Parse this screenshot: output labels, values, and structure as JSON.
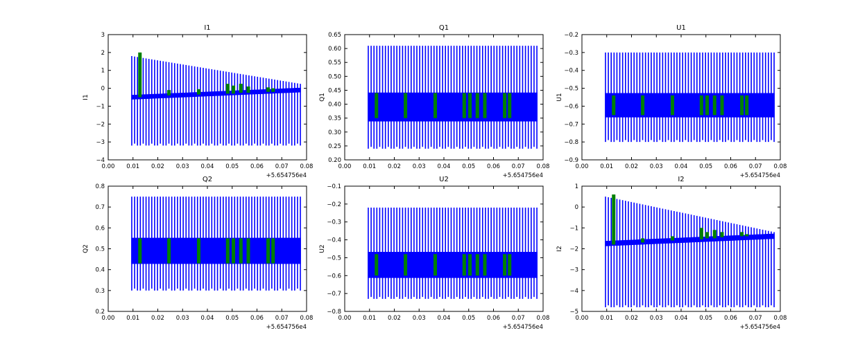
{
  "colors": {
    "primary": "#0000ff",
    "secondary": "#008000",
    "frame": "#000000",
    "background": "#ffffff"
  },
  "chart_data": [
    {
      "type": "line",
      "title": "I1",
      "ylabel": "I1",
      "xlabel": "",
      "xlim": [
        0.0,
        0.08
      ],
      "ylim": [
        -4,
        3
      ],
      "offset_label": "+5.654756e4",
      "x_ticks": [
        "0.00",
        "0.01",
        "0.02",
        "0.03",
        "0.04",
        "0.05",
        "0.06",
        "0.07",
        "0.08"
      ],
      "y_ticks": [
        "−4",
        "−3",
        "−2",
        "−1",
        "0",
        "1",
        "2",
        "3"
      ],
      "series": [
        {
          "name": "band",
          "color": "#0000ff",
          "x_range": [
            0.0095,
            0.0775
          ],
          "band_start": [
            -0.6,
            -0.4
          ],
          "band_end": [
            -0.2,
            0.0
          ]
        },
        {
          "name": "spikes",
          "color": "#0000ff",
          "x_range": [
            0.0095,
            0.0775
          ],
          "n_spikes": 60,
          "spike_top_start": 1.8,
          "spike_top_end": 0.25,
          "spike_bottom": -3.2
        },
        {
          "name": "series 2",
          "color": "#008000",
          "x": [
            0.0128,
            0.0245,
            0.0365,
            0.0482,
            0.0505,
            0.0535,
            0.0565,
            0.0645,
            0.0665
          ],
          "y_low": [
            -0.5,
            -0.4,
            -0.35,
            -0.3,
            -0.3,
            -0.25,
            -0.25,
            -0.2,
            -0.2
          ],
          "y_high": [
            2.0,
            -0.1,
            -0.05,
            0.25,
            0.15,
            0.25,
            0.1,
            0.05,
            0.0
          ]
        }
      ]
    },
    {
      "type": "line",
      "title": "Q1",
      "ylabel": "Q1",
      "xlabel": "",
      "xlim": [
        0.0,
        0.08
      ],
      "ylim": [
        0.2,
        0.65
      ],
      "offset_label": "+5.654756e4",
      "x_ticks": [
        "0.00",
        "0.01",
        "0.02",
        "0.03",
        "0.04",
        "0.05",
        "0.06",
        "0.07",
        "0.08"
      ],
      "y_ticks": [
        "0.20",
        "0.25",
        "0.30",
        "0.35",
        "0.40",
        "0.45",
        "0.50",
        "0.55",
        "0.60",
        "0.65"
      ],
      "series": [
        {
          "name": "band",
          "color": "#0000ff",
          "x_range": [
            0.0095,
            0.0775
          ],
          "band_start": [
            0.34,
            0.44
          ],
          "band_end": [
            0.34,
            0.44
          ]
        },
        {
          "name": "spikes",
          "color": "#0000ff",
          "x_range": [
            0.0095,
            0.0775
          ],
          "n_spikes": 60,
          "spike_top_start": 0.61,
          "spike_top_end": 0.61,
          "spike_bottom": 0.24
        },
        {
          "name": "series 2",
          "color": "#008000",
          "x": [
            0.0128,
            0.0245,
            0.0365,
            0.0482,
            0.0505,
            0.0535,
            0.0565,
            0.0645,
            0.0665
          ],
          "y_low": [
            0.35,
            0.35,
            0.35,
            0.35,
            0.35,
            0.35,
            0.35,
            0.35,
            0.35
          ],
          "y_high": [
            0.44,
            0.44,
            0.44,
            0.44,
            0.44,
            0.44,
            0.44,
            0.44,
            0.44
          ]
        }
      ]
    },
    {
      "type": "line",
      "title": "U1",
      "ylabel": "U1",
      "xlabel": "",
      "xlim": [
        0.0,
        0.08
      ],
      "ylim": [
        -0.9,
        -0.2
      ],
      "offset_label": "+5.654756e4",
      "x_ticks": [
        "0.00",
        "0.01",
        "0.02",
        "0.03",
        "0.04",
        "0.05",
        "0.06",
        "0.07",
        "0.08"
      ],
      "y_ticks": [
        "−0.9",
        "−0.8",
        "−0.7",
        "−0.6",
        "−0.5",
        "−0.4",
        "−0.3",
        "−0.2"
      ],
      "series": [
        {
          "name": "band",
          "color": "#0000ff",
          "x_range": [
            0.0095,
            0.0775
          ],
          "band_start": [
            -0.66,
            -0.53
          ],
          "band_end": [
            -0.66,
            -0.53
          ]
        },
        {
          "name": "spikes",
          "color": "#0000ff",
          "x_range": [
            0.0095,
            0.0775
          ],
          "n_spikes": 60,
          "spike_top_start": -0.3,
          "spike_top_end": -0.3,
          "spike_bottom": -0.8
        },
        {
          "name": "series 2",
          "color": "#008000",
          "x": [
            0.0128,
            0.0245,
            0.0365,
            0.0482,
            0.0505,
            0.0535,
            0.0565,
            0.0645,
            0.0665
          ],
          "y_low": [
            -0.65,
            -0.65,
            -0.65,
            -0.65,
            -0.65,
            -0.65,
            -0.65,
            -0.65,
            -0.65
          ],
          "y_high": [
            -0.54,
            -0.54,
            -0.54,
            -0.54,
            -0.54,
            -0.54,
            -0.54,
            -0.54,
            -0.54
          ]
        }
      ]
    },
    {
      "type": "line",
      "title": "Q2",
      "ylabel": "Q2",
      "xlabel": "",
      "xlim": [
        0.0,
        0.08
      ],
      "ylim": [
        0.2,
        0.8
      ],
      "offset_label": "+5.654756e4",
      "x_ticks": [
        "0.00",
        "0.01",
        "0.02",
        "0.03",
        "0.04",
        "0.05",
        "0.06",
        "0.07",
        "0.08"
      ],
      "y_ticks": [
        "0.2",
        "0.3",
        "0.4",
        "0.5",
        "0.6",
        "0.7",
        "0.8"
      ],
      "series": [
        {
          "name": "band",
          "color": "#0000ff",
          "x_range": [
            0.0095,
            0.0775
          ],
          "band_start": [
            0.43,
            0.55
          ],
          "band_end": [
            0.43,
            0.55
          ]
        },
        {
          "name": "spikes",
          "color": "#0000ff",
          "x_range": [
            0.0095,
            0.0775
          ],
          "n_spikes": 60,
          "spike_top_start": 0.75,
          "spike_top_end": 0.75,
          "spike_bottom": 0.3
        },
        {
          "name": "series 2",
          "color": "#008000",
          "x": [
            0.0128,
            0.0245,
            0.0365,
            0.0482,
            0.0505,
            0.0535,
            0.0565,
            0.0645,
            0.0665
          ],
          "y_low": [
            0.43,
            0.43,
            0.43,
            0.43,
            0.43,
            0.43,
            0.43,
            0.43,
            0.43
          ],
          "y_high": [
            0.55,
            0.55,
            0.55,
            0.55,
            0.55,
            0.55,
            0.55,
            0.55,
            0.55
          ]
        }
      ]
    },
    {
      "type": "line",
      "title": "U2",
      "ylabel": "U2",
      "xlabel": "",
      "xlim": [
        0.0,
        0.08
      ],
      "ylim": [
        -0.8,
        -0.1
      ],
      "offset_label": "+5.654756e4",
      "x_ticks": [
        "0.00",
        "0.01",
        "0.02",
        "0.03",
        "0.04",
        "0.05",
        "0.06",
        "0.07",
        "0.08"
      ],
      "y_ticks": [
        "−0.8",
        "−0.7",
        "−0.6",
        "−0.5",
        "−0.4",
        "−0.3",
        "−0.2",
        "−0.1"
      ],
      "series": [
        {
          "name": "band",
          "color": "#0000ff",
          "x_range": [
            0.0095,
            0.0775
          ],
          "band_start": [
            -0.61,
            -0.47
          ],
          "band_end": [
            -0.61,
            -0.47
          ]
        },
        {
          "name": "spikes",
          "color": "#0000ff",
          "x_range": [
            0.0095,
            0.0775
          ],
          "n_spikes": 60,
          "spike_top_start": -0.22,
          "spike_top_end": -0.22,
          "spike_bottom": -0.73
        },
        {
          "name": "series 2",
          "color": "#008000",
          "x": [
            0.0128,
            0.0245,
            0.0365,
            0.0482,
            0.0505,
            0.0535,
            0.0565,
            0.0645,
            0.0665
          ],
          "y_low": [
            -0.6,
            -0.6,
            -0.6,
            -0.6,
            -0.6,
            -0.6,
            -0.6,
            -0.6,
            -0.6
          ],
          "y_high": [
            -0.48,
            -0.48,
            -0.48,
            -0.48,
            -0.48,
            -0.48,
            -0.48,
            -0.48,
            -0.48
          ]
        }
      ]
    },
    {
      "type": "line",
      "title": "I2",
      "ylabel": "I2",
      "xlabel": "",
      "xlim": [
        0.0,
        0.08
      ],
      "ylim": [
        -5,
        1
      ],
      "offset_label": "+5.654756e4",
      "x_ticks": [
        "0.00",
        "0.01",
        "0.02",
        "0.03",
        "0.04",
        "0.05",
        "0.06",
        "0.07",
        "0.08"
      ],
      "y_ticks": [
        "−5",
        "−4",
        "−3",
        "−2",
        "−1",
        "0",
        "1"
      ],
      "series": [
        {
          "name": "band",
          "color": "#0000ff",
          "x_range": [
            0.0095,
            0.0775
          ],
          "band_start": [
            -1.85,
            -1.65
          ],
          "band_end": [
            -1.5,
            -1.3
          ]
        },
        {
          "name": "spikes",
          "color": "#0000ff",
          "x_range": [
            0.0095,
            0.0775
          ],
          "n_spikes": 60,
          "spike_top_start": 0.5,
          "spike_top_end": -1.2,
          "spike_bottom": -4.8
        },
        {
          "name": "series 2",
          "color": "#008000",
          "x": [
            0.0128,
            0.0245,
            0.0365,
            0.0482,
            0.0505,
            0.0535,
            0.0565,
            0.0645,
            0.0665
          ],
          "y_low": [
            -1.8,
            -1.7,
            -1.6,
            -1.55,
            -1.5,
            -1.5,
            -1.45,
            -1.4,
            -1.4
          ],
          "y_high": [
            0.6,
            -1.5,
            -1.4,
            -1.0,
            -1.2,
            -1.1,
            -1.2,
            -1.2,
            -1.3
          ]
        }
      ]
    }
  ]
}
